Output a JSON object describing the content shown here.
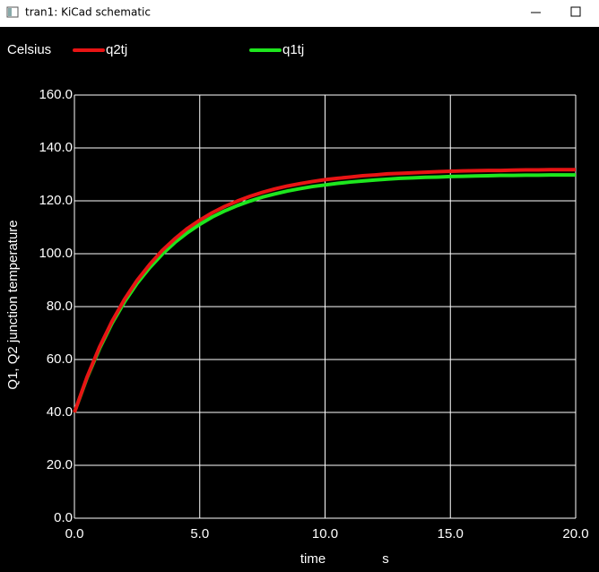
{
  "window": {
    "title": "tran1: KiCad schematic"
  },
  "chart_data": {
    "type": "line",
    "ylabel": "Q1, Q2 junction temperature",
    "y_unit": "Celsius",
    "xlabel": "time",
    "x_unit": "s",
    "x": [
      0,
      0.5,
      1,
      1.5,
      2,
      2.5,
      3,
      3.5,
      4,
      4.5,
      5,
      5.5,
      6,
      6.5,
      7,
      7.5,
      8,
      8.5,
      9,
      9.5,
      10,
      10.5,
      11,
      11.5,
      12,
      12.5,
      13,
      13.5,
      14,
      14.5,
      15,
      15.5,
      16,
      16.5,
      17,
      17.5,
      18,
      18.5,
      19,
      19.5,
      20
    ],
    "series": [
      {
        "name": "q2tj",
        "color": "#e81414",
        "values": [
          40,
          53.3,
          64.7,
          74.4,
          82.8,
          89.9,
          95.9,
          101.2,
          105.6,
          109.5,
          112.7,
          115.5,
          117.9,
          119.9,
          121.7,
          123.2,
          124.5,
          125.6,
          126.5,
          127.3,
          128.0,
          128.5,
          129.0,
          129.5,
          129.8,
          130.2,
          130.4,
          130.6,
          130.8,
          131.0,
          131.2,
          131.3,
          131.4,
          131.5,
          131.5,
          131.6,
          131.7,
          131.7,
          131.8,
          131.8,
          131.8
        ]
      },
      {
        "name": "q1tj",
        "color": "#1ee61e",
        "values": [
          40,
          53.0,
          64.1,
          73.7,
          81.8,
          88.8,
          94.7,
          99.8,
          104.2,
          107.9,
          111.1,
          113.9,
          116.2,
          118.2,
          119.9,
          121.4,
          122.6,
          123.7,
          124.6,
          125.4,
          126.0,
          126.6,
          127.1,
          127.5,
          127.9,
          128.2,
          128.5,
          128.7,
          128.9,
          129.0,
          129.2,
          129.3,
          129.4,
          129.5,
          129.6,
          129.6,
          129.7,
          129.7,
          129.8,
          129.8,
          129.8
        ]
      }
    ],
    "xlim": [
      0,
      20
    ],
    "xticks": [
      {
        "value": 0,
        "label": "0.0"
      },
      {
        "value": 5,
        "label": "5.0"
      },
      {
        "value": 10,
        "label": "10.0"
      },
      {
        "value": 15,
        "label": "15.0"
      },
      {
        "value": 20,
        "label": "20.0"
      }
    ],
    "ylim": [
      0,
      160
    ],
    "yticks": [
      {
        "value": 0,
        "label": "0.0"
      },
      {
        "value": 20,
        "label": "20.0"
      },
      {
        "value": 40,
        "label": "40.0"
      },
      {
        "value": 60,
        "label": "60.0"
      },
      {
        "value": 80,
        "label": "80.0"
      },
      {
        "value": 100,
        "label": "100.0"
      },
      {
        "value": 120,
        "label": "120.0"
      },
      {
        "value": 140,
        "label": "140.0"
      },
      {
        "value": 160,
        "label": "160.0"
      }
    ],
    "grid": true,
    "background": "#000000",
    "grid_color": "#ffffff"
  }
}
